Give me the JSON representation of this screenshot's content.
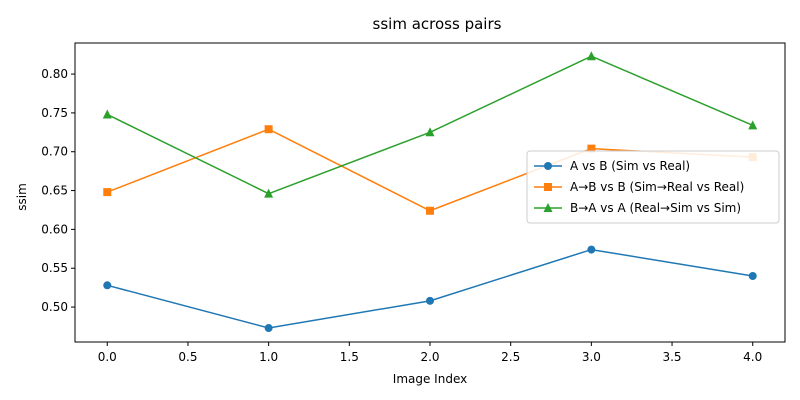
{
  "chart_data": {
    "type": "line",
    "title": "ssim across pairs",
    "xlabel": "Image Index",
    "ylabel": "ssim",
    "x": [
      0,
      1,
      2,
      3,
      4
    ],
    "xlim": [
      -0.2,
      4.2
    ],
    "ylim": [
      0.455,
      0.84
    ],
    "xticks": [
      0.0,
      0.5,
      1.0,
      1.5,
      2.0,
      2.5,
      3.0,
      3.5,
      4.0
    ],
    "xtick_labels": [
      "0.0",
      "0.5",
      "1.0",
      "1.5",
      "2.0",
      "2.5",
      "3.0",
      "3.5",
      "4.0"
    ],
    "yticks": [
      0.5,
      0.55,
      0.6,
      0.65,
      0.7,
      0.75,
      0.8
    ],
    "ytick_labels": [
      "0.50",
      "0.55",
      "0.60",
      "0.65",
      "0.70",
      "0.75",
      "0.80"
    ],
    "grid": false,
    "legend_position": "center-right",
    "series": [
      {
        "name": "A vs B (Sim vs Real)",
        "color": "#1f77b4",
        "marker": "circle",
        "values": [
          0.528,
          0.473,
          0.508,
          0.574,
          0.54
        ]
      },
      {
        "name": "A→B vs B (Sim→Real vs Real)",
        "color": "#ff7f0e",
        "marker": "square",
        "values": [
          0.648,
          0.729,
          0.624,
          0.704,
          0.693
        ]
      },
      {
        "name": "B→A vs A (Real→Sim vs Sim)",
        "color": "#2ca02c",
        "marker": "triangle",
        "values": [
          0.748,
          0.646,
          0.725,
          0.823,
          0.734
        ]
      }
    ]
  }
}
